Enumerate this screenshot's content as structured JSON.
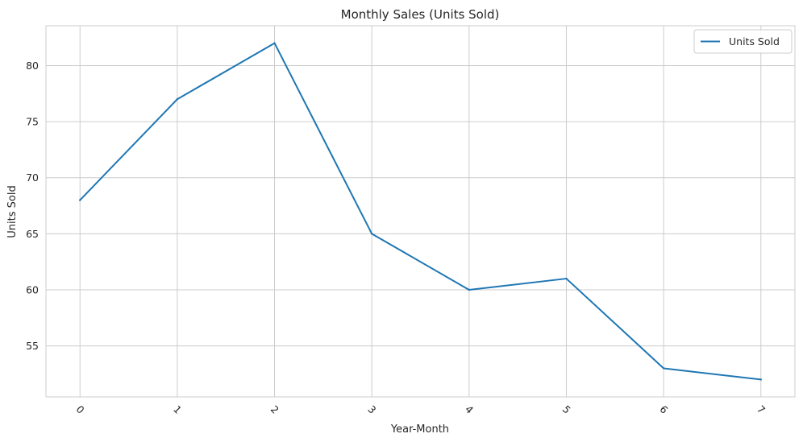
{
  "chart_data": {
    "type": "line",
    "title": "Monthly Sales (Units Sold)",
    "xlabel": "Year-Month",
    "ylabel": "Units Sold",
    "x": [
      0,
      1,
      2,
      3,
      4,
      5,
      6,
      7
    ],
    "x_tick_labels": [
      "0",
      "1",
      "2",
      "3",
      "4",
      "5",
      "6",
      "7"
    ],
    "y_ticks": [
      55,
      60,
      65,
      70,
      75,
      80
    ],
    "y_tick_labels": [
      "55",
      "60",
      "65",
      "70",
      "75",
      "80"
    ],
    "xlim": [
      -0.35,
      7.35
    ],
    "ylim": [
      50.45,
      83.55
    ],
    "grid": true,
    "legend_position": "top-right",
    "series": [
      {
        "name": "Units Sold",
        "color": "#1f77b4",
        "values": [
          68,
          77,
          82,
          65,
          60,
          61,
          53,
          52
        ]
      }
    ]
  }
}
